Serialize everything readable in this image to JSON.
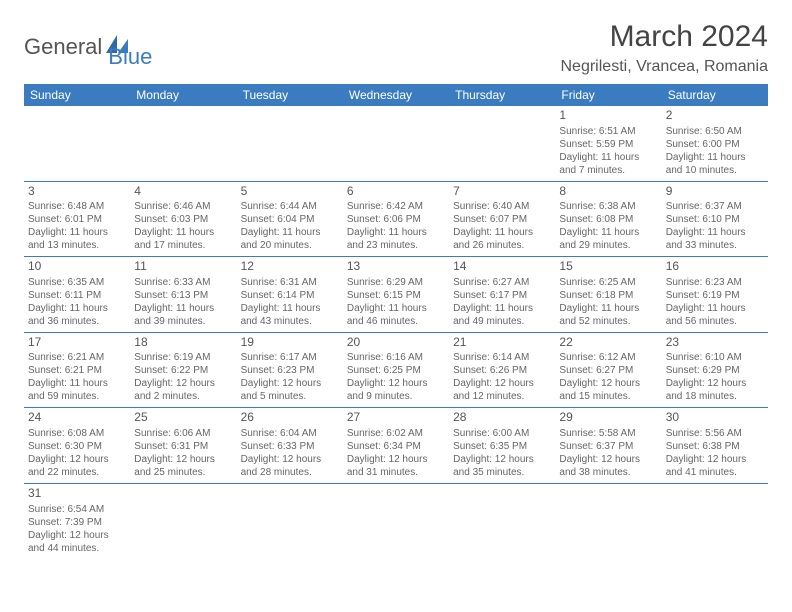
{
  "logo": {
    "part1": "General",
    "part2": "Blue"
  },
  "title": "March 2024",
  "location": "Negrilesti, Vrancea, Romania",
  "header_bg": "#3b7bbf",
  "header_fg": "#ffffff",
  "border_color": "#3b7bbf",
  "text_color": "#555555",
  "dayHeaders": [
    "Sunday",
    "Monday",
    "Tuesday",
    "Wednesday",
    "Thursday",
    "Friday",
    "Saturday"
  ],
  "weeks": [
    [
      null,
      null,
      null,
      null,
      null,
      {
        "d": "1",
        "sr": "Sunrise: 6:51 AM",
        "ss": "Sunset: 5:59 PM",
        "dl1": "Daylight: 11 hours",
        "dl2": "and 7 minutes."
      },
      {
        "d": "2",
        "sr": "Sunrise: 6:50 AM",
        "ss": "Sunset: 6:00 PM",
        "dl1": "Daylight: 11 hours",
        "dl2": "and 10 minutes."
      }
    ],
    [
      {
        "d": "3",
        "sr": "Sunrise: 6:48 AM",
        "ss": "Sunset: 6:01 PM",
        "dl1": "Daylight: 11 hours",
        "dl2": "and 13 minutes."
      },
      {
        "d": "4",
        "sr": "Sunrise: 6:46 AM",
        "ss": "Sunset: 6:03 PM",
        "dl1": "Daylight: 11 hours",
        "dl2": "and 17 minutes."
      },
      {
        "d": "5",
        "sr": "Sunrise: 6:44 AM",
        "ss": "Sunset: 6:04 PM",
        "dl1": "Daylight: 11 hours",
        "dl2": "and 20 minutes."
      },
      {
        "d": "6",
        "sr": "Sunrise: 6:42 AM",
        "ss": "Sunset: 6:06 PM",
        "dl1": "Daylight: 11 hours",
        "dl2": "and 23 minutes."
      },
      {
        "d": "7",
        "sr": "Sunrise: 6:40 AM",
        "ss": "Sunset: 6:07 PM",
        "dl1": "Daylight: 11 hours",
        "dl2": "and 26 minutes."
      },
      {
        "d": "8",
        "sr": "Sunrise: 6:38 AM",
        "ss": "Sunset: 6:08 PM",
        "dl1": "Daylight: 11 hours",
        "dl2": "and 29 minutes."
      },
      {
        "d": "9",
        "sr": "Sunrise: 6:37 AM",
        "ss": "Sunset: 6:10 PM",
        "dl1": "Daylight: 11 hours",
        "dl2": "and 33 minutes."
      }
    ],
    [
      {
        "d": "10",
        "sr": "Sunrise: 6:35 AM",
        "ss": "Sunset: 6:11 PM",
        "dl1": "Daylight: 11 hours",
        "dl2": "and 36 minutes."
      },
      {
        "d": "11",
        "sr": "Sunrise: 6:33 AM",
        "ss": "Sunset: 6:13 PM",
        "dl1": "Daylight: 11 hours",
        "dl2": "and 39 minutes."
      },
      {
        "d": "12",
        "sr": "Sunrise: 6:31 AM",
        "ss": "Sunset: 6:14 PM",
        "dl1": "Daylight: 11 hours",
        "dl2": "and 43 minutes."
      },
      {
        "d": "13",
        "sr": "Sunrise: 6:29 AM",
        "ss": "Sunset: 6:15 PM",
        "dl1": "Daylight: 11 hours",
        "dl2": "and 46 minutes."
      },
      {
        "d": "14",
        "sr": "Sunrise: 6:27 AM",
        "ss": "Sunset: 6:17 PM",
        "dl1": "Daylight: 11 hours",
        "dl2": "and 49 minutes."
      },
      {
        "d": "15",
        "sr": "Sunrise: 6:25 AM",
        "ss": "Sunset: 6:18 PM",
        "dl1": "Daylight: 11 hours",
        "dl2": "and 52 minutes."
      },
      {
        "d": "16",
        "sr": "Sunrise: 6:23 AM",
        "ss": "Sunset: 6:19 PM",
        "dl1": "Daylight: 11 hours",
        "dl2": "and 56 minutes."
      }
    ],
    [
      {
        "d": "17",
        "sr": "Sunrise: 6:21 AM",
        "ss": "Sunset: 6:21 PM",
        "dl1": "Daylight: 11 hours",
        "dl2": "and 59 minutes."
      },
      {
        "d": "18",
        "sr": "Sunrise: 6:19 AM",
        "ss": "Sunset: 6:22 PM",
        "dl1": "Daylight: 12 hours",
        "dl2": "and 2 minutes."
      },
      {
        "d": "19",
        "sr": "Sunrise: 6:17 AM",
        "ss": "Sunset: 6:23 PM",
        "dl1": "Daylight: 12 hours",
        "dl2": "and 5 minutes."
      },
      {
        "d": "20",
        "sr": "Sunrise: 6:16 AM",
        "ss": "Sunset: 6:25 PM",
        "dl1": "Daylight: 12 hours",
        "dl2": "and 9 minutes."
      },
      {
        "d": "21",
        "sr": "Sunrise: 6:14 AM",
        "ss": "Sunset: 6:26 PM",
        "dl1": "Daylight: 12 hours",
        "dl2": "and 12 minutes."
      },
      {
        "d": "22",
        "sr": "Sunrise: 6:12 AM",
        "ss": "Sunset: 6:27 PM",
        "dl1": "Daylight: 12 hours",
        "dl2": "and 15 minutes."
      },
      {
        "d": "23",
        "sr": "Sunrise: 6:10 AM",
        "ss": "Sunset: 6:29 PM",
        "dl1": "Daylight: 12 hours",
        "dl2": "and 18 minutes."
      }
    ],
    [
      {
        "d": "24",
        "sr": "Sunrise: 6:08 AM",
        "ss": "Sunset: 6:30 PM",
        "dl1": "Daylight: 12 hours",
        "dl2": "and 22 minutes."
      },
      {
        "d": "25",
        "sr": "Sunrise: 6:06 AM",
        "ss": "Sunset: 6:31 PM",
        "dl1": "Daylight: 12 hours",
        "dl2": "and 25 minutes."
      },
      {
        "d": "26",
        "sr": "Sunrise: 6:04 AM",
        "ss": "Sunset: 6:33 PM",
        "dl1": "Daylight: 12 hours",
        "dl2": "and 28 minutes."
      },
      {
        "d": "27",
        "sr": "Sunrise: 6:02 AM",
        "ss": "Sunset: 6:34 PM",
        "dl1": "Daylight: 12 hours",
        "dl2": "and 31 minutes."
      },
      {
        "d": "28",
        "sr": "Sunrise: 6:00 AM",
        "ss": "Sunset: 6:35 PM",
        "dl1": "Daylight: 12 hours",
        "dl2": "and 35 minutes."
      },
      {
        "d": "29",
        "sr": "Sunrise: 5:58 AM",
        "ss": "Sunset: 6:37 PM",
        "dl1": "Daylight: 12 hours",
        "dl2": "and 38 minutes."
      },
      {
        "d": "30",
        "sr": "Sunrise: 5:56 AM",
        "ss": "Sunset: 6:38 PM",
        "dl1": "Daylight: 12 hours",
        "dl2": "and 41 minutes."
      }
    ],
    [
      {
        "d": "31",
        "sr": "Sunrise: 6:54 AM",
        "ss": "Sunset: 7:39 PM",
        "dl1": "Daylight: 12 hours",
        "dl2": "and 44 minutes."
      },
      null,
      null,
      null,
      null,
      null,
      null
    ]
  ]
}
